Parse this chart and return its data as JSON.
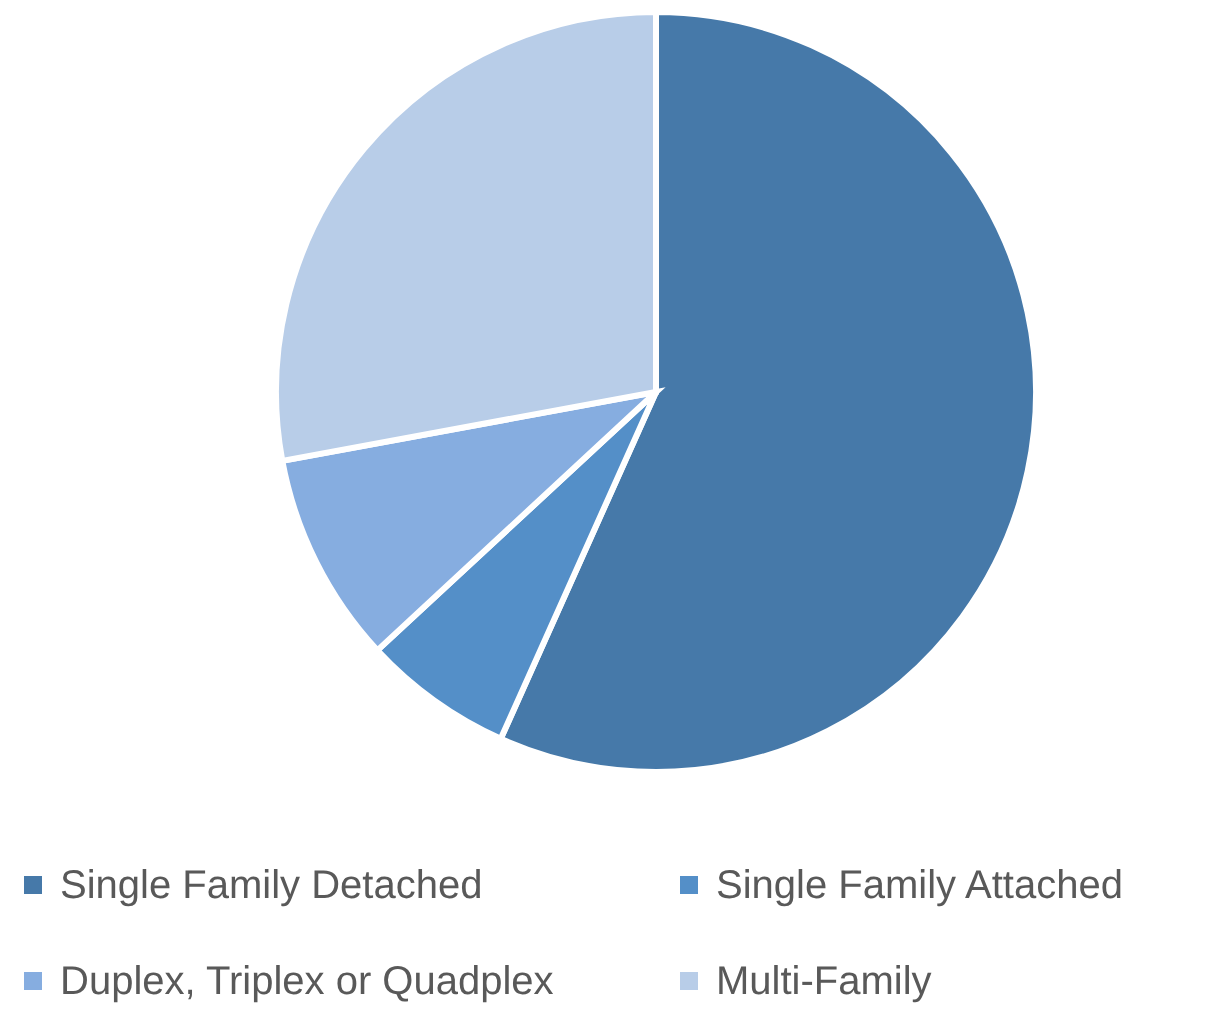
{
  "chart_data": {
    "type": "pie",
    "categories": [
      "Single Family Detached",
      "Single Family Attached",
      "Duplex, Triplex or Quadplex",
      "Multi-Family"
    ],
    "values": [
      56.7,
      6.4,
      9.0,
      27.9
    ],
    "colors": [
      "#4679a9",
      "#548fc8",
      "#86ade0",
      "#b8cde8"
    ],
    "legend": "bottom"
  }
}
